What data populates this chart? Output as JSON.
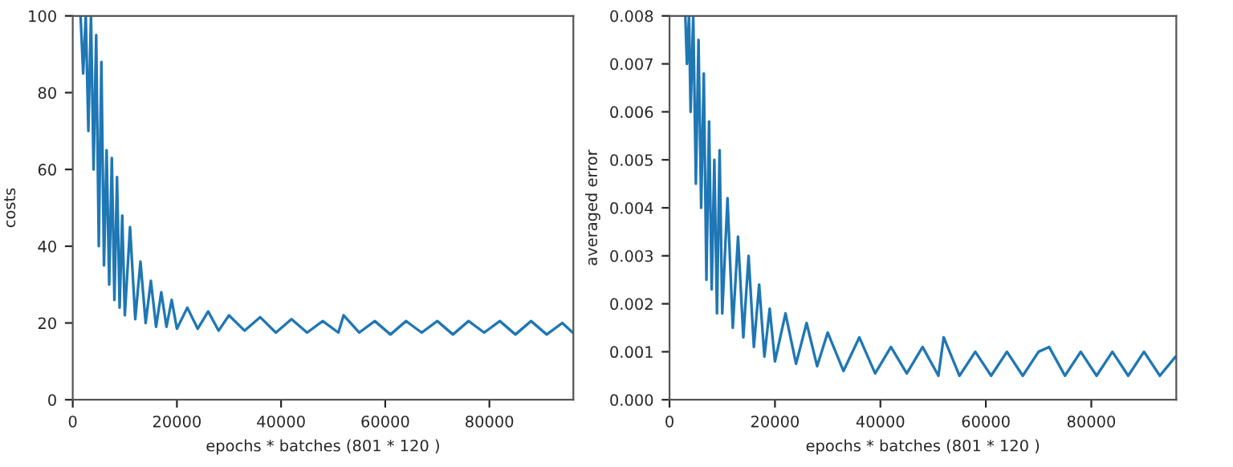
{
  "chart_data": [
    {
      "type": "line",
      "xlabel": "epochs * batches (801 * 120 )",
      "ylabel": "costs",
      "xlim": [
        0,
        96120
      ],
      "ylim": [
        0,
        100
      ],
      "xticks": [
        0,
        20000,
        40000,
        60000,
        80000
      ],
      "yticks": [
        0,
        20,
        40,
        60,
        80,
        100
      ],
      "grid": false,
      "x": [
        1500,
        2000,
        2500,
        3000,
        3500,
        4000,
        4500,
        5000,
        5500,
        6000,
        6500,
        7000,
        7500,
        8000,
        8500,
        9000,
        9500,
        10000,
        11000,
        12000,
        13000,
        14000,
        15000,
        16000,
        17000,
        18000,
        19000,
        20000,
        22000,
        24000,
        26000,
        28000,
        30000,
        33000,
        36000,
        39000,
        42000,
        45000,
        48000,
        51000,
        52000,
        55000,
        58000,
        61000,
        64000,
        67000,
        70000,
        73000,
        76000,
        79000,
        82000,
        85000,
        88000,
        91000,
        94000,
        96000
      ],
      "series": [
        {
          "color": "#1f77b4",
          "values": [
            100,
            85,
            100,
            70,
            100,
            60,
            95,
            40,
            88,
            35,
            65,
            30,
            63,
            26,
            58,
            24,
            48,
            22,
            45,
            21,
            36,
            20,
            31,
            19,
            28,
            19,
            26,
            18.5,
            24,
            18.5,
            23,
            18,
            22,
            18,
            21.5,
            17.5,
            21,
            17.5,
            20.5,
            17.5,
            22,
            17.5,
            20.5,
            17,
            20.5,
            17.5,
            20.5,
            17,
            20.5,
            17.5,
            20.5,
            17,
            20.5,
            17,
            20,
            17.5
          ]
        }
      ]
    },
    {
      "type": "line",
      "xlabel": "epochs * batches (801 * 120 )",
      "ylabel": "averaged error",
      "xlim": [
        0,
        96120
      ],
      "ylim": [
        0,
        0.008
      ],
      "xticks": [
        0,
        20000,
        40000,
        60000,
        80000
      ],
      "yticks": [
        {
          "value": 0,
          "label": "0.000"
        },
        {
          "value": 0.001,
          "label": "0.001"
        },
        {
          "value": 0.002,
          "label": "0.002"
        },
        {
          "value": 0.003,
          "label": "0.003"
        },
        {
          "value": 0.004,
          "label": "0.004"
        },
        {
          "value": 0.005,
          "label": "0.005"
        },
        {
          "value": 0.006,
          "label": "0.006"
        },
        {
          "value": 0.007,
          "label": "0.007"
        },
        {
          "value": 0.008,
          "label": "0.008"
        }
      ],
      "grid": false,
      "x": [
        3000,
        3300,
        3700,
        4000,
        4500,
        5000,
        5500,
        6000,
        6500,
        7000,
        7500,
        8000,
        8500,
        9000,
        9500,
        10000,
        11000,
        12000,
        13000,
        14000,
        15000,
        16000,
        17000,
        18000,
        19000,
        20000,
        22000,
        24000,
        26000,
        28000,
        30000,
        33000,
        36000,
        39000,
        42000,
        45000,
        48000,
        51000,
        52000,
        55000,
        58000,
        61000,
        64000,
        67000,
        70000,
        72000,
        75000,
        78000,
        81000,
        84000,
        87000,
        90000,
        93000,
        96000
      ],
      "series": [
        {
          "color": "#1f77b4",
          "values": [
            0.008,
            0.007,
            0.008,
            0.006,
            0.008,
            0.0045,
            0.0075,
            0.004,
            0.0068,
            0.0025,
            0.0058,
            0.0023,
            0.005,
            0.0018,
            0.0052,
            0.0018,
            0.0042,
            0.0015,
            0.0034,
            0.0013,
            0.003,
            0.0011,
            0.0024,
            0.0009,
            0.0019,
            0.0008,
            0.0018,
            0.00075,
            0.0016,
            0.0007,
            0.0014,
            0.0006,
            0.0013,
            0.00055,
            0.0011,
            0.00055,
            0.0011,
            0.0005,
            0.0013,
            0.0005,
            0.001,
            0.0005,
            0.001,
            0.0005,
            0.001,
            0.0011,
            0.0005,
            0.001,
            0.0005,
            0.001,
            0.0005,
            0.001,
            0.0005,
            0.0009
          ]
        }
      ]
    }
  ]
}
